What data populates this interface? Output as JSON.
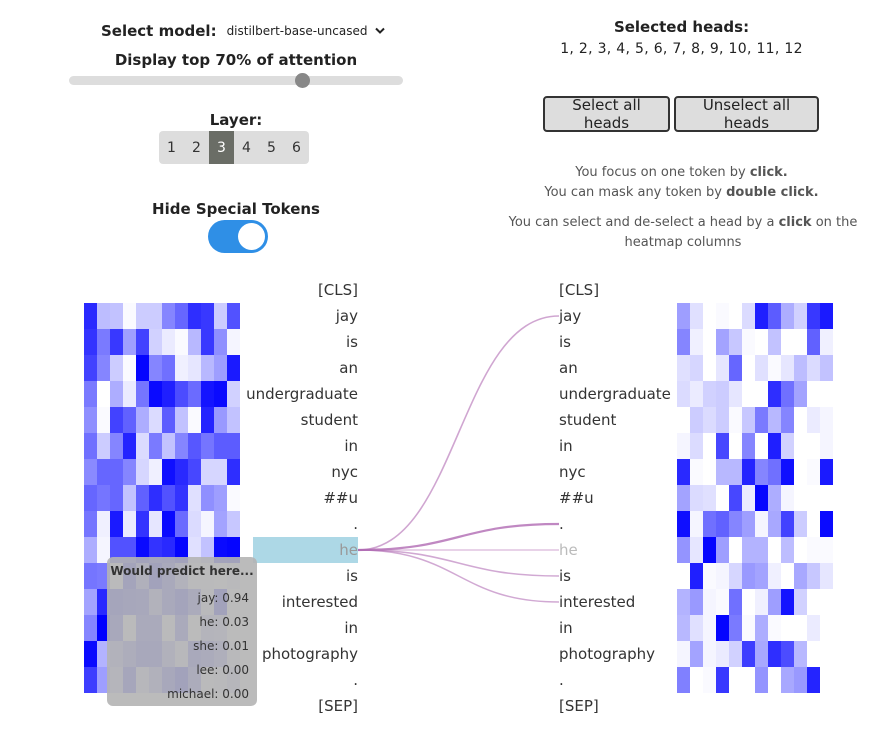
{
  "model_selector": {
    "label": "Select model:",
    "value": "distilbert-base-uncased",
    "icon": "chevron-down-icon"
  },
  "threshold": {
    "label": "Display top 70% of attention",
    "value_percent": 70
  },
  "layer": {
    "label": "Layer:",
    "options": [
      "1",
      "2",
      "3",
      "4",
      "5",
      "6"
    ],
    "selected": "3"
  },
  "special_tokens": {
    "label": "Hide Special Tokens",
    "enabled": true
  },
  "heads": {
    "title": "Selected heads:",
    "list": "1, 2, 3, 4, 5, 6, 7, 8, 9, 10, 11, 12",
    "select_all": "Select all heads",
    "unselect_all": "Unselect all heads"
  },
  "instructions": {
    "focus_pre": "You focus on one token by ",
    "focus_b": "click.",
    "mask_pre": "You can mask any token by ",
    "mask_b": "double click.",
    "head_pre": "You can select and de-select a head by a ",
    "head_b": "click",
    "head_post": " on the heatmap columns"
  },
  "tokens": [
    "[CLS]",
    "jay",
    "is",
    "an",
    "undergraduate",
    "student",
    "in",
    "nyc",
    "##u",
    ".",
    "he",
    "is",
    "interested",
    "in",
    "photography",
    ".",
    "[SEP]"
  ],
  "focused_token_index": 10,
  "tooltip": {
    "title": "Would predict here...",
    "predictions": [
      {
        "token": "jay",
        "prob": "0.94"
      },
      {
        "token": "he",
        "prob": "0.03"
      },
      {
        "token": "she",
        "prob": "0.01"
      },
      {
        "token": "lee",
        "prob": "0.00"
      },
      {
        "token": "michael",
        "prob": "0.00"
      }
    ]
  },
  "attention_links": [
    {
      "target": 1,
      "weight": 0.5
    },
    {
      "target": 9,
      "weight": 0.9
    },
    {
      "target": 10,
      "weight": 0.25
    },
    {
      "target": 11,
      "weight": 0.45
    },
    {
      "target": 12,
      "weight": 0.45
    }
  ],
  "accent_color": "#2f8fe6",
  "link_color": "#b06ab3"
}
